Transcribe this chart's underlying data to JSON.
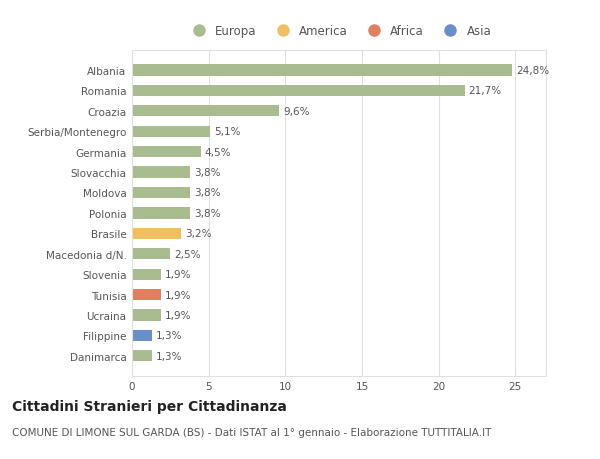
{
  "categories": [
    "Albania",
    "Romania",
    "Croazia",
    "Serbia/Montenegro",
    "Germania",
    "Slovacchia",
    "Moldova",
    "Polonia",
    "Brasile",
    "Macedonia d/N.",
    "Slovenia",
    "Tunisia",
    "Ucraina",
    "Filippine",
    "Danimarca"
  ],
  "values": [
    24.8,
    21.7,
    9.6,
    5.1,
    4.5,
    3.8,
    3.8,
    3.8,
    3.2,
    2.5,
    1.9,
    1.9,
    1.9,
    1.3,
    1.3
  ],
  "labels": [
    "24,8%",
    "21,7%",
    "9,6%",
    "5,1%",
    "4,5%",
    "3,8%",
    "3,8%",
    "3,8%",
    "3,2%",
    "2,5%",
    "1,9%",
    "1,9%",
    "1,9%",
    "1,3%",
    "1,3%"
  ],
  "continents": [
    "Europa",
    "Europa",
    "Europa",
    "Europa",
    "Europa",
    "Europa",
    "Europa",
    "Europa",
    "America",
    "Europa",
    "Europa",
    "Africa",
    "Europa",
    "Asia",
    "Europa"
  ],
  "continent_colors": {
    "Europa": "#a8bc8f",
    "America": "#f0c060",
    "Africa": "#e08060",
    "Asia": "#6a8fc8"
  },
  "legend_items": [
    "Europa",
    "America",
    "Africa",
    "Asia"
  ],
  "legend_colors": [
    "#a8bc8f",
    "#f0c060",
    "#e08060",
    "#6a8fc8"
  ],
  "bg_color": "#ffffff",
  "grid_color": "#e0e0e0",
  "title": "Cittadini Stranieri per Cittadinanza",
  "subtitle": "COMUNE DI LIMONE SUL GARDA (BS) - Dati ISTAT al 1° gennaio - Elaborazione TUTTITALIA.IT",
  "xlim": [
    0,
    27
  ],
  "xticks": [
    0,
    5,
    10,
    15,
    20,
    25
  ],
  "bar_height": 0.55,
  "label_fontsize": 7.5,
  "tick_fontsize": 7.5,
  "title_fontsize": 10,
  "subtitle_fontsize": 7.5
}
